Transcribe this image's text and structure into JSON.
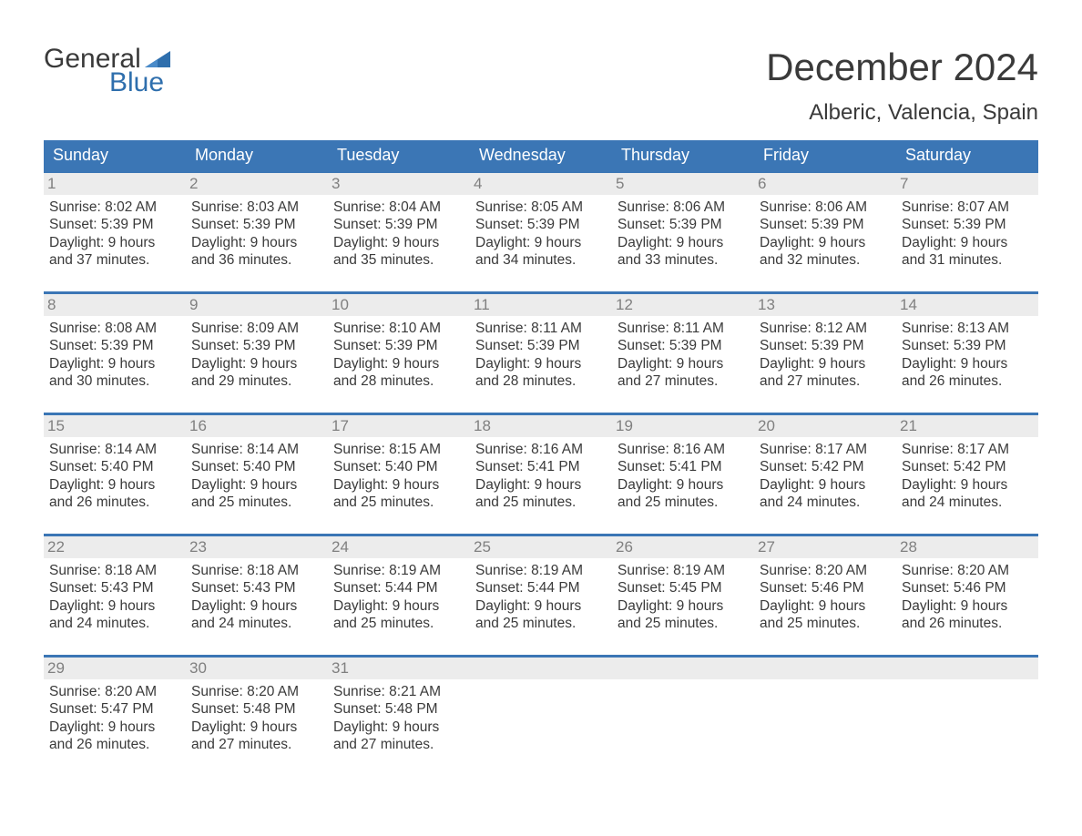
{
  "logo": {
    "word1": "General",
    "word2": "Blue"
  },
  "title": "December 2024",
  "location": "Alberic, Valencia, Spain",
  "colors": {
    "header_bg": "#3b76b5",
    "header_text": "#ffffff",
    "daybar_bg": "#ececec",
    "daybar_text": "#808080",
    "body_text": "#3a3a3a",
    "logo_blue": "#2f6fad",
    "week_border": "#3b76b5",
    "page_bg": "#ffffff"
  },
  "dayHeaders": [
    "Sunday",
    "Monday",
    "Tuesday",
    "Wednesday",
    "Thursday",
    "Friday",
    "Saturday"
  ],
  "weeks": [
    [
      {
        "n": "1",
        "sr": "Sunrise: 8:02 AM",
        "ss": "Sunset: 5:39 PM",
        "d1": "Daylight: 9 hours",
        "d2": "and 37 minutes."
      },
      {
        "n": "2",
        "sr": "Sunrise: 8:03 AM",
        "ss": "Sunset: 5:39 PM",
        "d1": "Daylight: 9 hours",
        "d2": "and 36 minutes."
      },
      {
        "n": "3",
        "sr": "Sunrise: 8:04 AM",
        "ss": "Sunset: 5:39 PM",
        "d1": "Daylight: 9 hours",
        "d2": "and 35 minutes."
      },
      {
        "n": "4",
        "sr": "Sunrise: 8:05 AM",
        "ss": "Sunset: 5:39 PM",
        "d1": "Daylight: 9 hours",
        "d2": "and 34 minutes."
      },
      {
        "n": "5",
        "sr": "Sunrise: 8:06 AM",
        "ss": "Sunset: 5:39 PM",
        "d1": "Daylight: 9 hours",
        "d2": "and 33 minutes."
      },
      {
        "n": "6",
        "sr": "Sunrise: 8:06 AM",
        "ss": "Sunset: 5:39 PM",
        "d1": "Daylight: 9 hours",
        "d2": "and 32 minutes."
      },
      {
        "n": "7",
        "sr": "Sunrise: 8:07 AM",
        "ss": "Sunset: 5:39 PM",
        "d1": "Daylight: 9 hours",
        "d2": "and 31 minutes."
      }
    ],
    [
      {
        "n": "8",
        "sr": "Sunrise: 8:08 AM",
        "ss": "Sunset: 5:39 PM",
        "d1": "Daylight: 9 hours",
        "d2": "and 30 minutes."
      },
      {
        "n": "9",
        "sr": "Sunrise: 8:09 AM",
        "ss": "Sunset: 5:39 PM",
        "d1": "Daylight: 9 hours",
        "d2": "and 29 minutes."
      },
      {
        "n": "10",
        "sr": "Sunrise: 8:10 AM",
        "ss": "Sunset: 5:39 PM",
        "d1": "Daylight: 9 hours",
        "d2": "and 28 minutes."
      },
      {
        "n": "11",
        "sr": "Sunrise: 8:11 AM",
        "ss": "Sunset: 5:39 PM",
        "d1": "Daylight: 9 hours",
        "d2": "and 28 minutes."
      },
      {
        "n": "12",
        "sr": "Sunrise: 8:11 AM",
        "ss": "Sunset: 5:39 PM",
        "d1": "Daylight: 9 hours",
        "d2": "and 27 minutes."
      },
      {
        "n": "13",
        "sr": "Sunrise: 8:12 AM",
        "ss": "Sunset: 5:39 PM",
        "d1": "Daylight: 9 hours",
        "d2": "and 27 minutes."
      },
      {
        "n": "14",
        "sr": "Sunrise: 8:13 AM",
        "ss": "Sunset: 5:39 PM",
        "d1": "Daylight: 9 hours",
        "d2": "and 26 minutes."
      }
    ],
    [
      {
        "n": "15",
        "sr": "Sunrise: 8:14 AM",
        "ss": "Sunset: 5:40 PM",
        "d1": "Daylight: 9 hours",
        "d2": "and 26 minutes."
      },
      {
        "n": "16",
        "sr": "Sunrise: 8:14 AM",
        "ss": "Sunset: 5:40 PM",
        "d1": "Daylight: 9 hours",
        "d2": "and 25 minutes."
      },
      {
        "n": "17",
        "sr": "Sunrise: 8:15 AM",
        "ss": "Sunset: 5:40 PM",
        "d1": "Daylight: 9 hours",
        "d2": "and 25 minutes."
      },
      {
        "n": "18",
        "sr": "Sunrise: 8:16 AM",
        "ss": "Sunset: 5:41 PM",
        "d1": "Daylight: 9 hours",
        "d2": "and 25 minutes."
      },
      {
        "n": "19",
        "sr": "Sunrise: 8:16 AM",
        "ss": "Sunset: 5:41 PM",
        "d1": "Daylight: 9 hours",
        "d2": "and 25 minutes."
      },
      {
        "n": "20",
        "sr": "Sunrise: 8:17 AM",
        "ss": "Sunset: 5:42 PM",
        "d1": "Daylight: 9 hours",
        "d2": "and 24 minutes."
      },
      {
        "n": "21",
        "sr": "Sunrise: 8:17 AM",
        "ss": "Sunset: 5:42 PM",
        "d1": "Daylight: 9 hours",
        "d2": "and 24 minutes."
      }
    ],
    [
      {
        "n": "22",
        "sr": "Sunrise: 8:18 AM",
        "ss": "Sunset: 5:43 PM",
        "d1": "Daylight: 9 hours",
        "d2": "and 24 minutes."
      },
      {
        "n": "23",
        "sr": "Sunrise: 8:18 AM",
        "ss": "Sunset: 5:43 PM",
        "d1": "Daylight: 9 hours",
        "d2": "and 24 minutes."
      },
      {
        "n": "24",
        "sr": "Sunrise: 8:19 AM",
        "ss": "Sunset: 5:44 PM",
        "d1": "Daylight: 9 hours",
        "d2": "and 25 minutes."
      },
      {
        "n": "25",
        "sr": "Sunrise: 8:19 AM",
        "ss": "Sunset: 5:44 PM",
        "d1": "Daylight: 9 hours",
        "d2": "and 25 minutes."
      },
      {
        "n": "26",
        "sr": "Sunrise: 8:19 AM",
        "ss": "Sunset: 5:45 PM",
        "d1": "Daylight: 9 hours",
        "d2": "and 25 minutes."
      },
      {
        "n": "27",
        "sr": "Sunrise: 8:20 AM",
        "ss": "Sunset: 5:46 PM",
        "d1": "Daylight: 9 hours",
        "d2": "and 25 minutes."
      },
      {
        "n": "28",
        "sr": "Sunrise: 8:20 AM",
        "ss": "Sunset: 5:46 PM",
        "d1": "Daylight: 9 hours",
        "d2": "and 26 minutes."
      }
    ],
    [
      {
        "n": "29",
        "sr": "Sunrise: 8:20 AM",
        "ss": "Sunset: 5:47 PM",
        "d1": "Daylight: 9 hours",
        "d2": "and 26 minutes."
      },
      {
        "n": "30",
        "sr": "Sunrise: 8:20 AM",
        "ss": "Sunset: 5:48 PM",
        "d1": "Daylight: 9 hours",
        "d2": "and 27 minutes."
      },
      {
        "n": "31",
        "sr": "Sunrise: 8:21 AM",
        "ss": "Sunset: 5:48 PM",
        "d1": "Daylight: 9 hours",
        "d2": "and 27 minutes."
      },
      null,
      null,
      null,
      null
    ]
  ]
}
